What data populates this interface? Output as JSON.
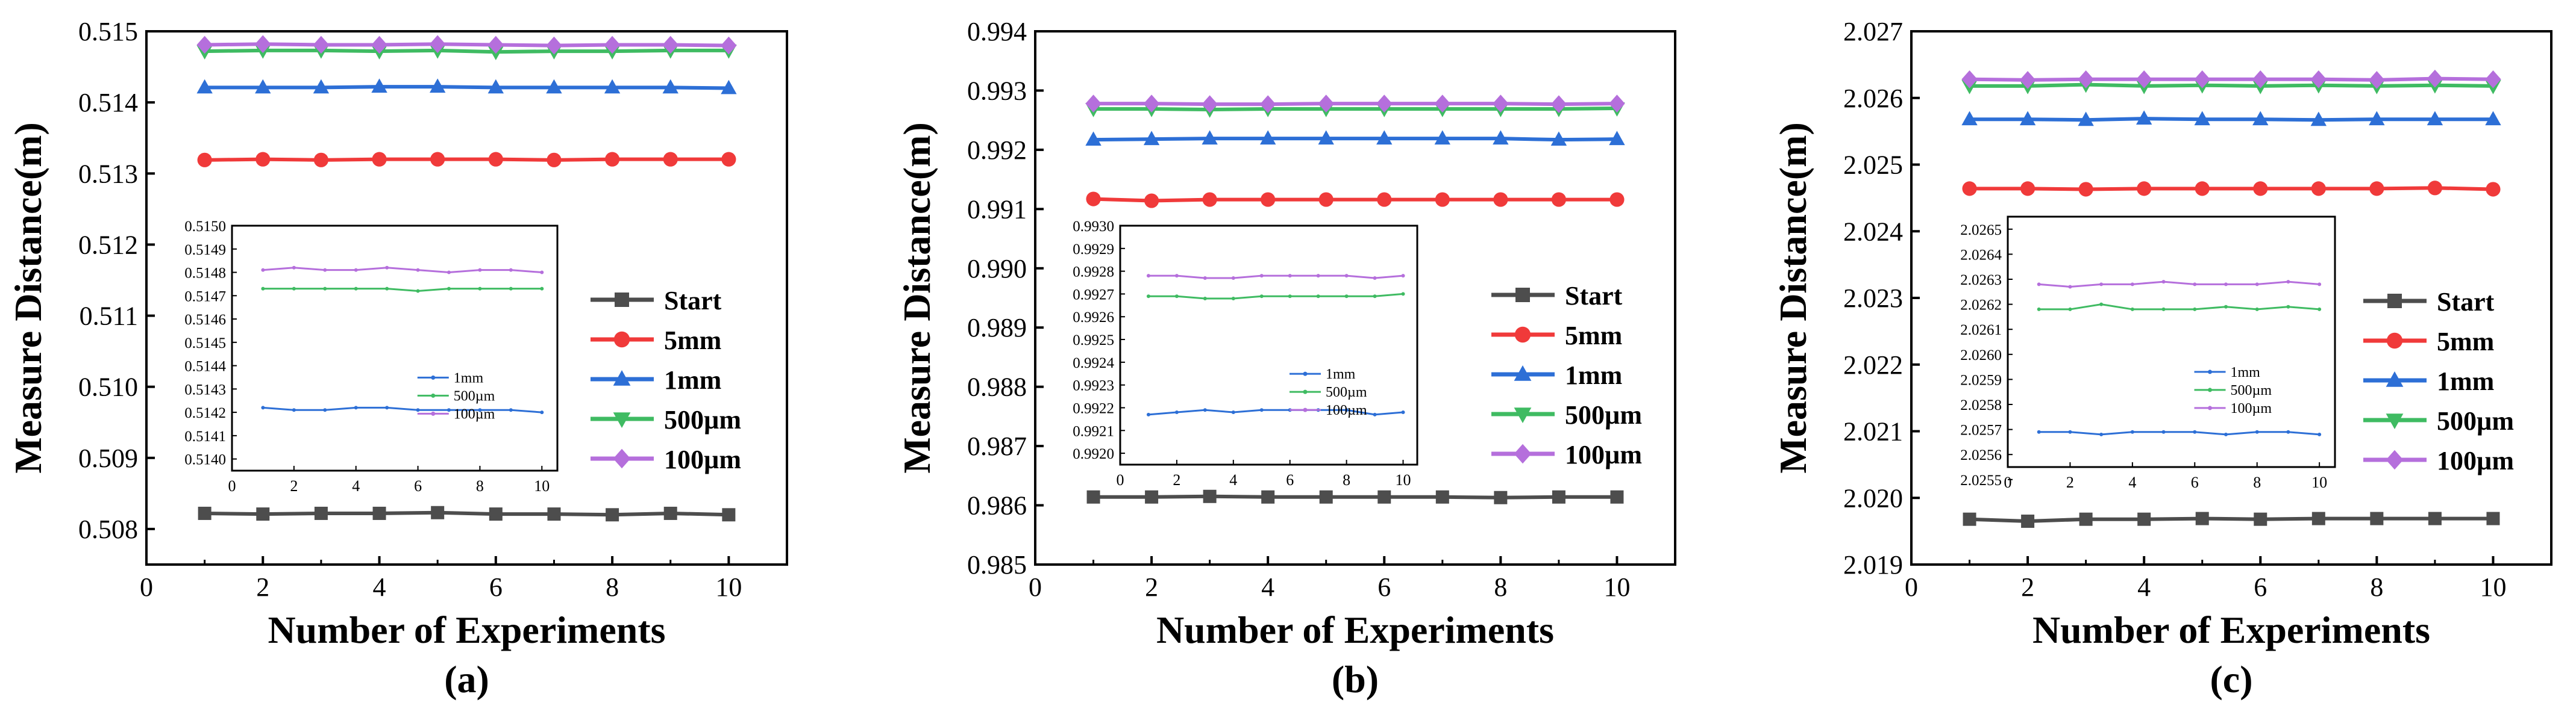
{
  "chart_data": [
    {
      "type": "line",
      "caption": "(a)",
      "xlabel": "Number of Experiments",
      "ylabel": "Measure Distance(m)",
      "xlim": [
        0,
        11
      ],
      "ylim": [
        0.5075,
        0.515
      ],
      "xticks": [
        "0",
        "2",
        "4",
        "6",
        "8",
        "10"
      ],
      "yticks": [
        "0.508",
        "0.509",
        "0.510",
        "0.511",
        "0.512",
        "0.513",
        "0.514",
        "0.515"
      ],
      "x": [
        1,
        2,
        3,
        4,
        5,
        6,
        7,
        8,
        9,
        10
      ],
      "series": [
        {
          "name": "Start",
          "values": [
            0.50822,
            0.50821,
            0.50822,
            0.50822,
            0.50823,
            0.50821,
            0.50821,
            0.5082,
            0.50822,
            0.5082
          ]
        },
        {
          "name": "5mm",
          "values": [
            0.51319,
            0.5132,
            0.51319,
            0.5132,
            0.5132,
            0.5132,
            0.51319,
            0.5132,
            0.5132,
            0.5132
          ]
        },
        {
          "name": "1mm",
          "values": [
            0.51421,
            0.51421,
            0.51421,
            0.51422,
            0.51422,
            0.51421,
            0.51421,
            0.51421,
            0.51421,
            0.5142
          ]
        },
        {
          "name": "500µm",
          "values": [
            0.51472,
            0.51473,
            0.51473,
            0.51472,
            0.51473,
            0.51471,
            0.51472,
            0.51472,
            0.51473,
            0.51473
          ]
        },
        {
          "name": "100µm",
          "values": [
            0.51481,
            0.51482,
            0.51481,
            0.51481,
            0.51482,
            0.51481,
            0.5148,
            0.51481,
            0.51481,
            0.5148
          ]
        }
      ],
      "inset": {
        "xlim": [
          0,
          10.5
        ],
        "ylim": [
          0.51395,
          0.515
        ],
        "xticks": [
          "0",
          "2",
          "4",
          "6",
          "8",
          "10"
        ],
        "yticks": [
          "0.5140",
          "0.5141",
          "0.5142",
          "0.5143",
          "0.5144",
          "0.5145",
          "0.5146",
          "0.5147",
          "0.5148",
          "0.5149",
          "0.5150"
        ],
        "series": [
          {
            "name": "1mm",
            "values": [
              0.51422,
              0.51421,
              0.51421,
              0.51422,
              0.51422,
              0.51421,
              0.51421,
              0.51421,
              0.51421,
              0.5142
            ]
          },
          {
            "name": "500µm",
            "values": [
              0.51473,
              0.51473,
              0.51473,
              0.51473,
              0.51473,
              0.51472,
              0.51473,
              0.51473,
              0.51473,
              0.51473
            ]
          },
          {
            "name": "100µm",
            "values": [
              0.51481,
              0.51482,
              0.51481,
              0.51481,
              0.51482,
              0.51481,
              0.5148,
              0.51481,
              0.51481,
              0.5148
            ]
          }
        ]
      }
    },
    {
      "type": "line",
      "caption": "(b)",
      "xlabel": "Number of Experiments",
      "ylabel": "Measure Distance(m)",
      "xlim": [
        0,
        11
      ],
      "ylim": [
        0.985,
        0.994
      ],
      "xticks": [
        "0",
        "2",
        "4",
        "6",
        "8",
        "10"
      ],
      "yticks": [
        "0.985",
        "0.986",
        "0.987",
        "0.988",
        "0.989",
        "0.990",
        "0.991",
        "0.992",
        "0.993",
        "0.994"
      ],
      "x": [
        1,
        2,
        3,
        4,
        5,
        6,
        7,
        8,
        9,
        10
      ],
      "series": [
        {
          "name": "Start",
          "values": [
            0.98614,
            0.98614,
            0.98615,
            0.98614,
            0.98614,
            0.98614,
            0.98614,
            0.98613,
            0.98614,
            0.98614
          ]
        },
        {
          "name": "5mm",
          "values": [
            0.99117,
            0.99114,
            0.99116,
            0.99116,
            0.99116,
            0.99116,
            0.99116,
            0.99116,
            0.99116,
            0.99116
          ]
        },
        {
          "name": "1mm",
          "values": [
            0.99217,
            0.99218,
            0.99219,
            0.99219,
            0.99219,
            0.99219,
            0.99219,
            0.99219,
            0.99217,
            0.99218
          ]
        },
        {
          "name": "500µm",
          "values": [
            0.99269,
            0.99269,
            0.99268,
            0.99269,
            0.99269,
            0.99269,
            0.99269,
            0.99269,
            0.99269,
            0.9927
          ]
        },
        {
          "name": "100µm",
          "values": [
            0.99278,
            0.99278,
            0.99277,
            0.99277,
            0.99278,
            0.99278,
            0.99278,
            0.99278,
            0.99277,
            0.99278
          ]
        }
      ],
      "inset": {
        "xlim": [
          0,
          10.5
        ],
        "ylim": [
          0.99195,
          0.993
        ],
        "xticks": [
          "0",
          "2",
          "4",
          "6",
          "8",
          "10"
        ],
        "yticks": [
          "0.9920",
          "0.9921",
          "0.9922",
          "0.9923",
          "0.9924",
          "0.9925",
          "0.9926",
          "0.9927",
          "0.9928",
          "0.9929",
          "0.9930"
        ],
        "series": [
          {
            "name": "1mm",
            "values": [
              0.99217,
              0.99218,
              0.99219,
              0.99218,
              0.99219,
              0.99219,
              0.99219,
              0.99219,
              0.99217,
              0.99218
            ]
          },
          {
            "name": "500µm",
            "values": [
              0.99269,
              0.99269,
              0.99268,
              0.99268,
              0.99269,
              0.99269,
              0.99269,
              0.99269,
              0.99269,
              0.9927
            ]
          },
          {
            "name": "100µm",
            "values": [
              0.99278,
              0.99278,
              0.99277,
              0.99277,
              0.99278,
              0.99278,
              0.99278,
              0.99278,
              0.99277,
              0.99278
            ]
          }
        ]
      }
    },
    {
      "type": "line",
      "caption": "(c)",
      "xlabel": "Number of Experiments",
      "ylabel": "Measure Distance(m)",
      "xlim": [
        0,
        11
      ],
      "ylim": [
        2.019,
        2.027
      ],
      "xticks": [
        "0",
        "2",
        "4",
        "6",
        "8",
        "10"
      ],
      "yticks": [
        "2.019",
        "2.020",
        "2.021",
        "2.022",
        "2.023",
        "2.024",
        "2.025",
        "2.026",
        "2.027"
      ],
      "x": [
        1,
        2,
        3,
        4,
        5,
        6,
        7,
        8,
        9,
        10
      ],
      "series": [
        {
          "name": "Start",
          "values": [
            2.01968,
            2.01965,
            2.01968,
            2.01968,
            2.01969,
            2.01968,
            2.01969,
            2.01969,
            2.01969,
            2.01969
          ]
        },
        {
          "name": "5mm",
          "values": [
            2.02464,
            2.02464,
            2.02463,
            2.02464,
            2.02464,
            2.02464,
            2.02464,
            2.02464,
            2.02465,
            2.02463
          ]
        },
        {
          "name": "1mm",
          "values": [
            2.02568,
            2.02568,
            2.02567,
            2.02569,
            2.02568,
            2.02568,
            2.02567,
            2.02568,
            2.02568,
            2.02568
          ]
        },
        {
          "name": "500µm",
          "values": [
            2.02618,
            2.02618,
            2.0262,
            2.02618,
            2.02619,
            2.02618,
            2.02619,
            2.02618,
            2.02619,
            2.02618
          ]
        },
        {
          "name": "100µm",
          "values": [
            2.02628,
            2.02627,
            2.02628,
            2.02628,
            2.02628,
            2.02628,
            2.02628,
            2.02627,
            2.02629,
            2.02628
          ]
        }
      ],
      "inset": {
        "xlim": [
          0,
          10.5
        ],
        "ylim": [
          2.02555,
          2.02655
        ],
        "xticks": [
          "0",
          "2",
          "4",
          "6",
          "8",
          "10"
        ],
        "yticks": [
          "2.0255",
          "2.0256",
          "2.0257",
          "2.0258",
          "2.0259",
          "2.0260",
          "2.0261",
          "2.0262",
          "2.0263",
          "2.0264",
          "2.0265"
        ],
        "series": [
          {
            "name": "1mm",
            "values": [
              2.02569,
              2.02569,
              2.02568,
              2.02569,
              2.02569,
              2.02569,
              2.02568,
              2.02569,
              2.02569,
              2.02568
            ]
          },
          {
            "name": "500µm",
            "values": [
              2.02618,
              2.02618,
              2.0262,
              2.02618,
              2.02618,
              2.02618,
              2.02619,
              2.02618,
              2.02619,
              2.02618
            ]
          },
          {
            "name": "100µm",
            "values": [
              2.02628,
              2.02627,
              2.02628,
              2.02628,
              2.02629,
              2.02628,
              2.02628,
              2.02628,
              2.02629,
              2.02628
            ]
          }
        ]
      }
    }
  ],
  "styles": {
    "colors": {
      "Start": "#4d4d4d",
      "5mm": "#f03a3a",
      "1mm": "#2d6fd6",
      "500µm": "#3fbb62",
      "100µm": "#b56fdc"
    },
    "markers": {
      "Start": "square",
      "5mm": "circle",
      "1mm": "triangle-up",
      "500µm": "triangle-down",
      "100µm": "diamond"
    }
  }
}
